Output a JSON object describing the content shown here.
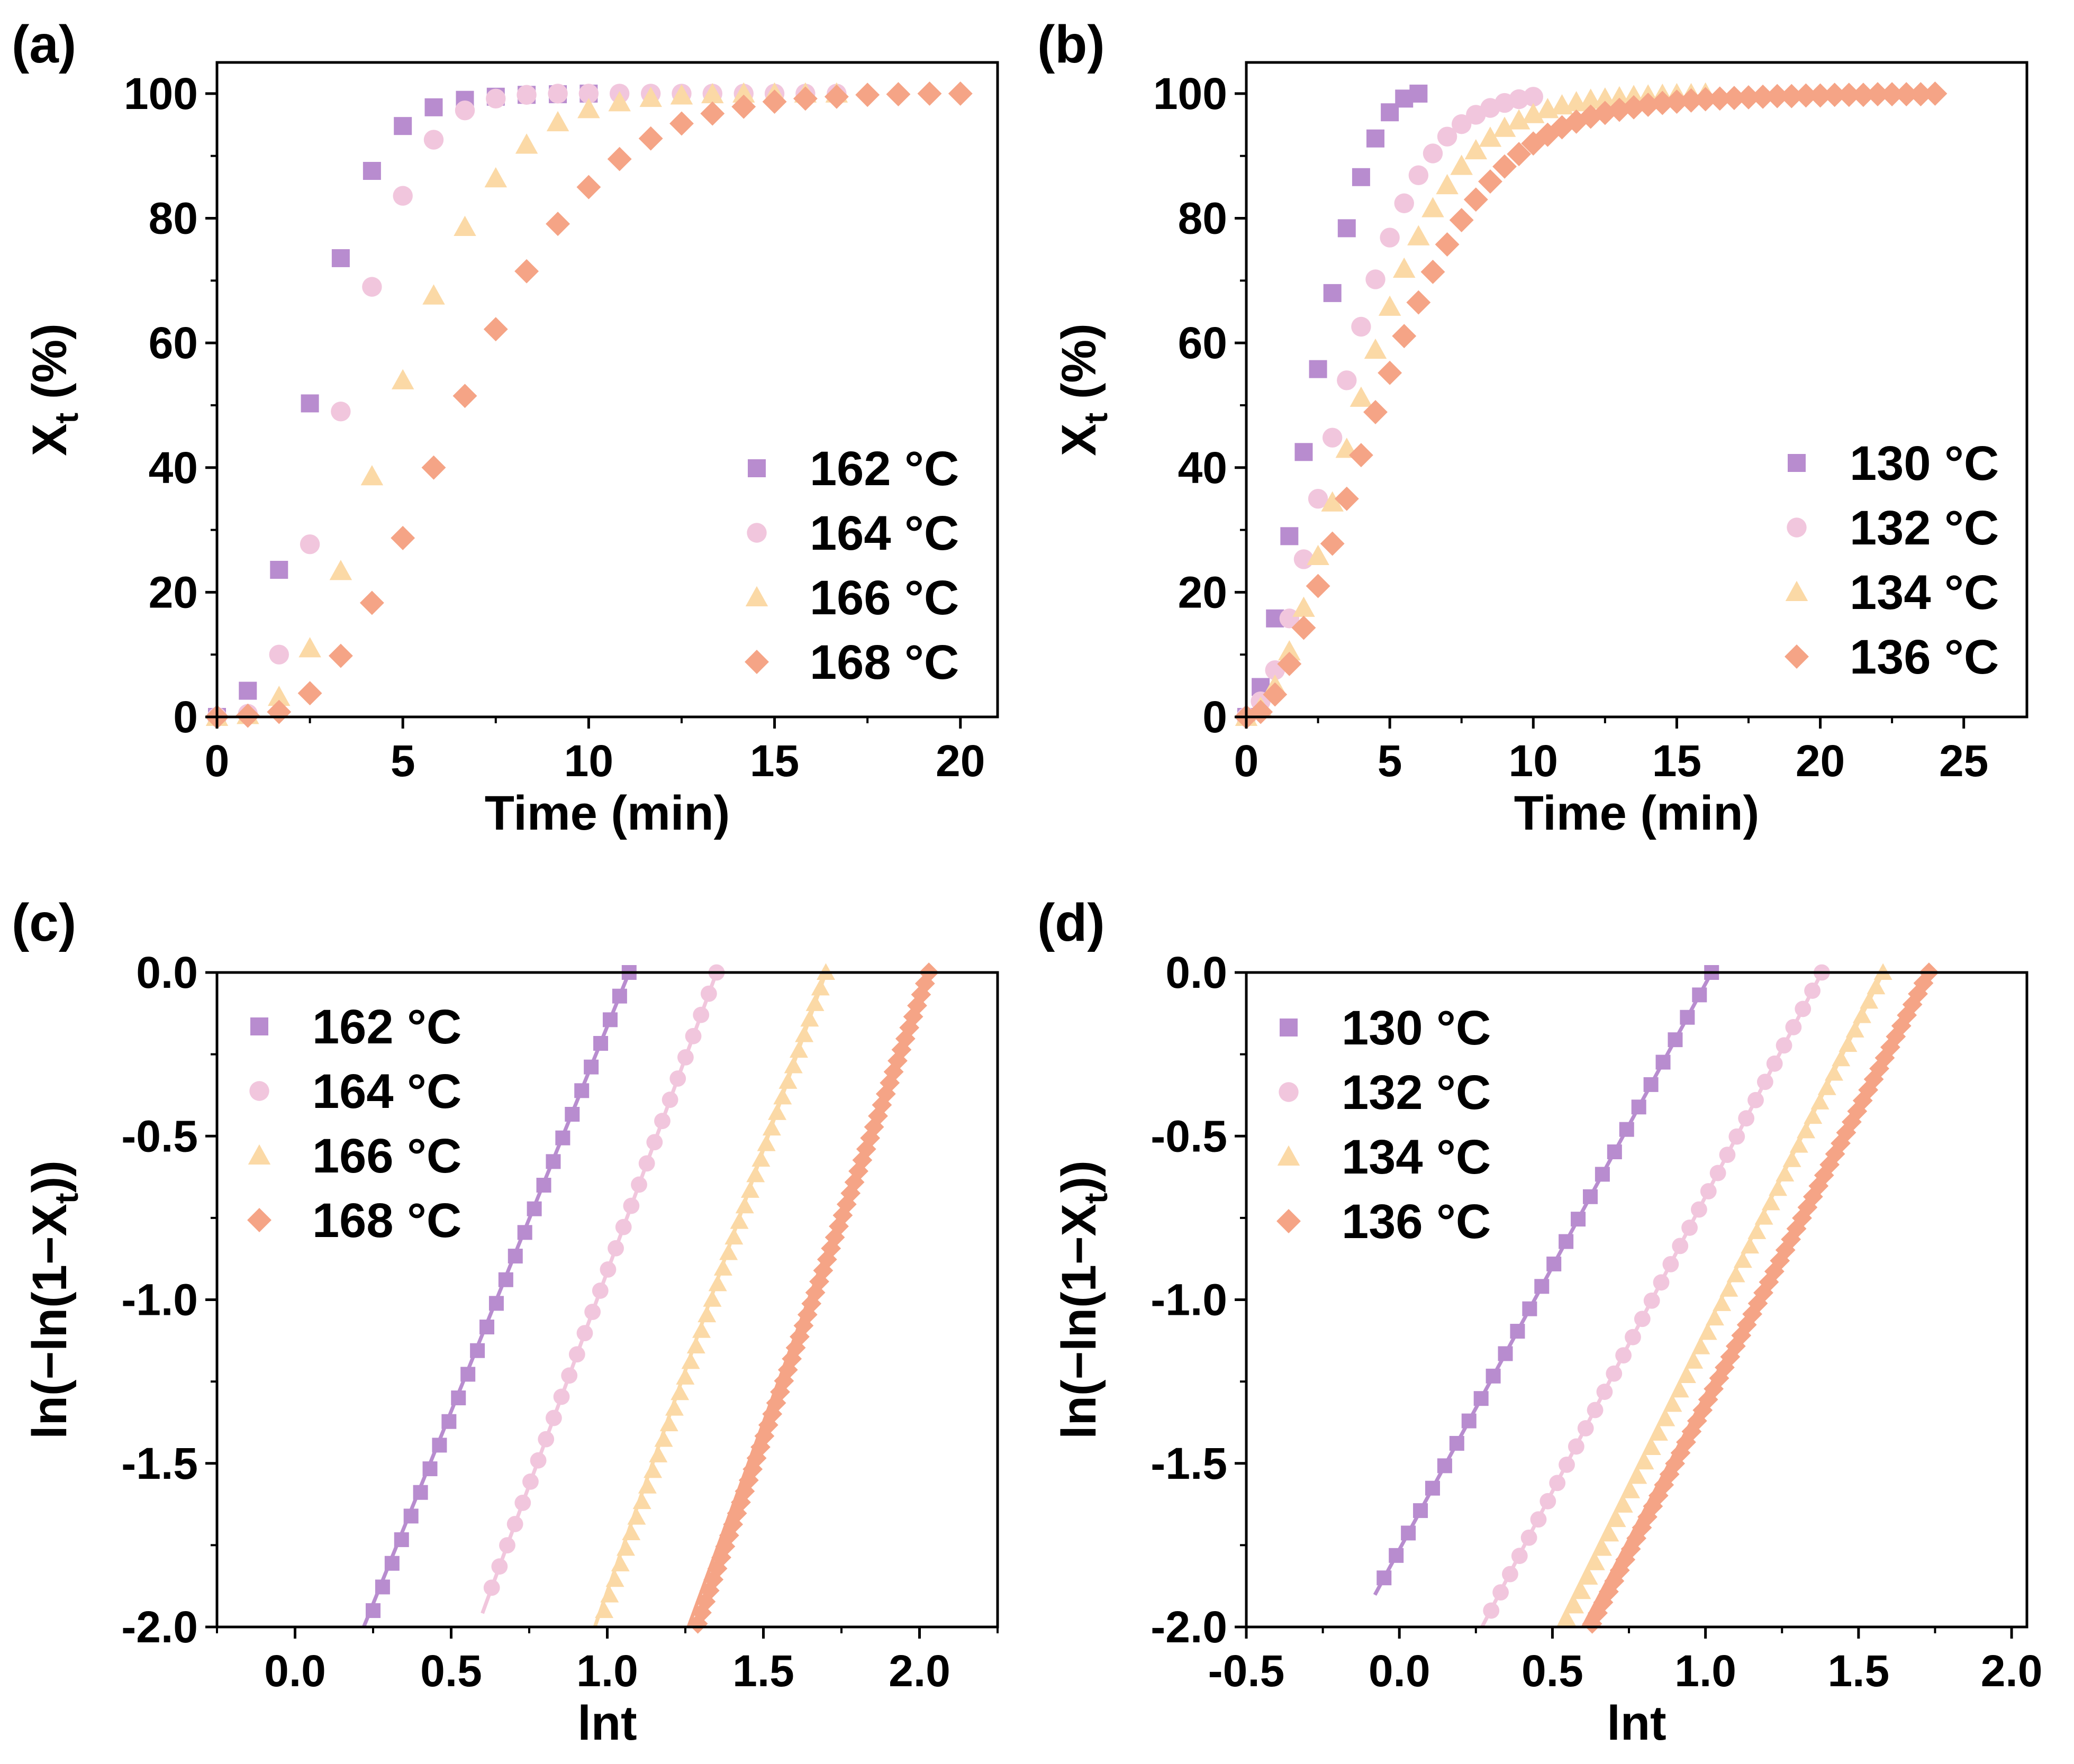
{
  "colors": {
    "purple": "#b88ccf",
    "pink": "#f1c6dd",
    "yellow": "#fbd9a6",
    "orange": "#f5a486"
  },
  "chart_data": [
    {
      "panel_label": "(a)",
      "type": "scatter",
      "xlabel": "Time (min)",
      "ylabel": "Xt (%)",
      "ylabel_main": "X",
      "ylabel_sub": "t",
      "ylabel_tail": " (%)",
      "xlim": [
        0,
        21
      ],
      "ylim": [
        0,
        105
      ],
      "xticks": [
        0,
        5,
        10,
        15,
        20
      ],
      "xtick_labels": [
        "0",
        "5",
        "10",
        "15",
        "20"
      ],
      "yticks": [
        0,
        20,
        40,
        60,
        80,
        100
      ],
      "ytick_labels": [
        "0",
        "20",
        "40",
        "60",
        "80",
        "100"
      ],
      "legend": "bottom-right",
      "grid": false,
      "series": [
        {
          "name": "162 °C",
          "marker": "square",
          "color": "#b88ccf",
          "x": [
            0,
            0.83,
            1.67,
            2.5,
            3.33,
            4.17,
            5,
            5.83,
            6.67,
            7.5,
            8.33,
            9.17,
            10
          ],
          "y": [
            0,
            4.2,
            23.6,
            50.3,
            73.6,
            87.6,
            94.8,
            97.8,
            99,
            99.5,
            99.8,
            99.9,
            100
          ]
        },
        {
          "name": "164 °C",
          "marker": "circle",
          "color": "#f1c6dd",
          "x": [
            0,
            0.83,
            1.67,
            2.5,
            3.33,
            4.17,
            5,
            5.83,
            6.67,
            7.5,
            8.33,
            9.17,
            10,
            10.83,
            11.67,
            12.5,
            13.33,
            14.17,
            15,
            15.83,
            16.67
          ],
          "y": [
            0,
            0.5,
            10,
            27.7,
            49,
            69,
            83.6,
            92.6,
            97.3,
            99.2,
            99.8,
            100,
            100,
            100,
            100,
            100,
            100,
            100,
            100,
            100,
            100
          ]
        },
        {
          "name": "166 °C",
          "marker": "triangle",
          "color": "#fbd9a6",
          "x": [
            0,
            0.83,
            1.67,
            2.5,
            3.33,
            4.17,
            5,
            5.83,
            6.67,
            7.5,
            8.33,
            9.17,
            10,
            10.83,
            11.67,
            12.5,
            13.33,
            14.17,
            15,
            15.83,
            16.67
          ],
          "y": [
            0,
            0.3,
            3.2,
            11,
            23.4,
            38.6,
            54,
            67.6,
            78.6,
            86.4,
            91.8,
            95.4,
            97.5,
            98.6,
            99.3,
            99.7,
            99.9,
            100,
            100,
            100,
            100
          ]
        },
        {
          "name": "168 °C",
          "marker": "diamond",
          "color": "#f5a486",
          "x": [
            0,
            0.83,
            1.67,
            2.5,
            3.33,
            4.17,
            5,
            5.83,
            6.67,
            7.5,
            8.33,
            9.17,
            10,
            10.83,
            11.67,
            12.5,
            13.33,
            14.17,
            15,
            15.83,
            16.67,
            17.5,
            18.33,
            19.17,
            20
          ],
          "y": [
            0,
            0.2,
            0.8,
            3.8,
            9.8,
            18.3,
            28.7,
            40,
            51.5,
            62.2,
            71.5,
            79.1,
            85,
            89.5,
            92.8,
            95.2,
            96.8,
            97.9,
            98.7,
            99.2,
            99.5,
            99.8,
            99.9,
            100,
            100
          ]
        }
      ]
    },
    {
      "panel_label": "(b)",
      "type": "scatter",
      "xlabel": "Time (min)",
      "ylabel": "Xt (%)",
      "ylabel_main": "X",
      "ylabel_sub": "t",
      "ylabel_tail": " (%)",
      "xlim": [
        0,
        27.2
      ],
      "ylim": [
        0,
        105
      ],
      "xticks": [
        0,
        5,
        10,
        15,
        20,
        25
      ],
      "xtick_labels": [
        "0",
        "5",
        "10",
        "15",
        "20",
        "25"
      ],
      "yticks": [
        0,
        20,
        40,
        60,
        80,
        100
      ],
      "ytick_labels": [
        "0",
        "20",
        "40",
        "60",
        "80",
        "100"
      ],
      "legend": "bottom-right",
      "grid": false,
      "series": [
        {
          "name": "130 °C",
          "marker": "square",
          "color": "#b88ccf",
          "x": [
            0,
            0.5,
            1,
            1.5,
            2,
            2.5,
            3,
            3.5,
            4,
            4.5,
            5,
            5.5,
            6
          ],
          "y": [
            0,
            4.8,
            15.8,
            29,
            42.5,
            55.8,
            68,
            78.4,
            86.6,
            92.8,
            97,
            99.2,
            100
          ]
        },
        {
          "name": "132 °C",
          "marker": "circle",
          "color": "#f1c6dd",
          "x": [
            0,
            0.5,
            1,
            1.5,
            2,
            2.5,
            3,
            3.5,
            4,
            4.5,
            5,
            5.5,
            6,
            6.5,
            7,
            7.5,
            8,
            8.5,
            9,
            9.5,
            10
          ],
          "y": [
            0,
            2.5,
            7.5,
            15.8,
            25.3,
            35,
            44.8,
            54,
            62.6,
            70.2,
            76.9,
            82.4,
            86.9,
            90.4,
            93.1,
            95.1,
            96.6,
            97.7,
            98.5,
            99.1,
            99.5
          ]
        },
        {
          "name": "134 °C",
          "marker": "triangle",
          "color": "#fbd9a6",
          "x": [
            0,
            0.5,
            1,
            1.5,
            2,
            2.5,
            3,
            3.5,
            4,
            4.5,
            5,
            5.5,
            6,
            6.5,
            7,
            7.5,
            8,
            8.5,
            9,
            9.5,
            10,
            10.5,
            11,
            11.5,
            12,
            12.5,
            13,
            13.5,
            14,
            14.5,
            15,
            15.5,
            16
          ],
          "y": [
            0,
            1.5,
            5,
            10.5,
            17.5,
            25.8,
            34.4,
            43,
            51.2,
            58.9,
            65.8,
            71.9,
            77.1,
            81.6,
            85.3,
            88.4,
            90.9,
            92.9,
            94.5,
            95.7,
            96.7,
            97.5,
            98.1,
            98.6,
            99,
            99.2,
            99.4,
            99.6,
            99.7,
            99.8,
            99.9,
            99.9,
            100
          ]
        },
        {
          "name": "136 °C",
          "marker": "diamond",
          "color": "#f5a486",
          "x": [
            0,
            0.5,
            1,
            1.5,
            2,
            2.5,
            3,
            3.5,
            4,
            4.5,
            5,
            5.5,
            6,
            6.5,
            7,
            7.5,
            8,
            8.5,
            9,
            9.5,
            10,
            10.5,
            11,
            11.5,
            12,
            12.5,
            13,
            13.5,
            14,
            14.5,
            15,
            15.5,
            16,
            16.5,
            17,
            17.5,
            18,
            18.5,
            19,
            19.5,
            20,
            20.5,
            21,
            21.5,
            22,
            22.5,
            23,
            23.5,
            24
          ],
          "y": [
            0,
            0.8,
            3.6,
            8.5,
            14.3,
            21,
            27.8,
            35,
            42,
            48.9,
            55.2,
            61.1,
            66.5,
            71.4,
            75.8,
            79.7,
            83,
            85.9,
            88.3,
            90.3,
            92,
            93.4,
            94.6,
            95.5,
            96.3,
            96.9,
            97.4,
            97.8,
            98.2,
            98.5,
            98.7,
            98.9,
            99.1,
            99.2,
            99.3,
            99.4,
            99.5,
            99.6,
            99.6,
            99.7,
            99.7,
            99.8,
            99.8,
            99.8,
            99.9,
            99.9,
            99.9,
            99.9,
            100
          ]
        }
      ]
    },
    {
      "panel_label": "(c)",
      "type": "scatter",
      "xlabel": "lnt",
      "ylabel": "ln(−ln(1−Xt))",
      "ylabel_main": "ln(−ln(1−X",
      "ylabel_sub": "t",
      "ylabel_tail": "))",
      "xlim": [
        -0.25,
        2.25
      ],
      "ylim": [
        -2.0,
        0.0
      ],
      "xticks": [
        0,
        0.5,
        1.0,
        1.5,
        2.0
      ],
      "xtick_labels": [
        "0.0",
        "0.5",
        "1.0",
        "1.5",
        "2.0"
      ],
      "yticks": [
        -2.0,
        -1.5,
        -1.0,
        -0.5,
        0.0
      ],
      "ytick_labels": [
        "-2.0",
        "-1.5",
        "-1.0",
        "-0.5",
        "0.0"
      ],
      "legend": "top-left",
      "grid": false,
      "series": [
        {
          "name": "162 °C",
          "marker": "square",
          "color": "#b88ccf",
          "x_start": 0.25,
          "x_end": 1.07,
          "y_start": -1.95,
          "y_end": 0.0,
          "count": 28
        },
        {
          "name": "164 °C",
          "marker": "circle",
          "color": "#f1c6dd",
          "x_start": 0.63,
          "x_end": 1.35,
          "y_start": -1.88,
          "y_end": 0.0,
          "count": 30
        },
        {
          "name": "166 °C",
          "marker": "triangle",
          "color": "#fbd9a6",
          "x_start": 0.99,
          "x_end": 1.7,
          "y_start": -1.95,
          "y_end": 0.0,
          "count": 42
        },
        {
          "name": "168 °C",
          "marker": "diamond",
          "color": "#f5a486",
          "x_start": 1.29,
          "x_end": 2.03,
          "y_start": -1.99,
          "y_end": 0.0,
          "count": 60
        }
      ]
    },
    {
      "panel_label": "(d)",
      "type": "scatter",
      "xlabel": "lnt",
      "ylabel": "ln(−ln(1−Xt))",
      "ylabel_main": "ln(−ln(1−X",
      "ylabel_sub": "t",
      "ylabel_tail": "))",
      "xlim": [
        -0.5,
        2.05
      ],
      "ylim": [
        -2.0,
        0.0
      ],
      "xticks": [
        -0.5,
        0,
        0.5,
        1.0,
        1.5,
        2.0
      ],
      "xtick_labels": [
        "-0.5",
        "0.0",
        "0.5",
        "1.0",
        "1.5",
        "2.0"
      ],
      "yticks": [
        -2.0,
        -1.5,
        -1.0,
        -0.5,
        0.0
      ],
      "ytick_labels": [
        "-2.0",
        "-1.5",
        "-1.0",
        "-0.5",
        "0.0"
      ],
      "legend": "top-left",
      "grid": false,
      "series": [
        {
          "name": "130 °C",
          "marker": "square",
          "color": "#b88ccf",
          "x_start": -0.05,
          "x_end": 1.02,
          "y_start": -1.85,
          "y_end": 0.0,
          "count": 28
        },
        {
          "name": "132 °C",
          "marker": "circle",
          "color": "#f1c6dd",
          "x_start": 0.3,
          "x_end": 1.38,
          "y_start": -1.95,
          "y_end": 0.0,
          "count": 36
        },
        {
          "name": "134 °C",
          "marker": "triangle",
          "color": "#fbd9a6",
          "x_start": 0.55,
          "x_end": 1.58,
          "y_start": -1.98,
          "y_end": 0.0,
          "count": 46
        },
        {
          "name": "136 °C",
          "marker": "diamond",
          "color": "#f5a486",
          "x_start": 0.63,
          "x_end": 1.73,
          "y_start": -1.99,
          "y_end": 0.0,
          "count": 62
        }
      ]
    }
  ]
}
